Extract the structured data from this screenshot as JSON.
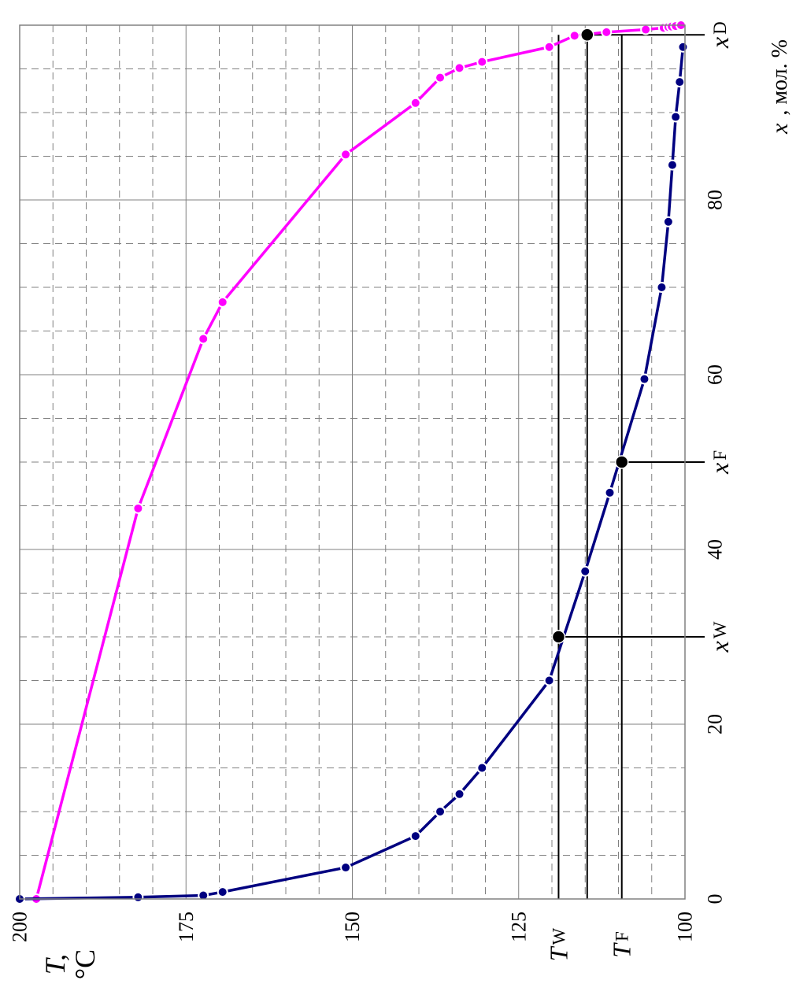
{
  "chart_data": {
    "type": "line",
    "x_axis": {
      "label_var": "x",
      "label_unit": "мол. %",
      "range": [
        0,
        100
      ],
      "ticks": [
        "0",
        "20",
        "40",
        "60",
        "80"
      ],
      "major_step": 20,
      "minor_step": 5
    },
    "y_axis": {
      "label_var": "T,",
      "label_unit": "°C",
      "range": [
        100,
        200
      ],
      "ticks": [
        "100",
        "125",
        "150",
        "175",
        "200"
      ],
      "major_step": 25,
      "minor_step": 5
    },
    "grid": true,
    "series": [
      {
        "color": "#FF00FF",
        "points": [
          [
            0,
            197.5
          ],
          [
            44.7,
            182.2
          ],
          [
            64.1,
            172.4
          ],
          [
            68.3,
            169.5
          ],
          [
            85.2,
            151.0
          ],
          [
            91.1,
            140.5
          ],
          [
            94.0,
            136.8
          ],
          [
            95.1,
            133.9
          ],
          [
            95.8,
            130.5
          ],
          [
            97.5,
            120.4
          ],
          [
            98.8,
            116.6
          ],
          [
            99.2,
            111.8
          ],
          [
            99.5,
            105.9
          ],
          [
            99.7,
            103.2
          ],
          [
            99.8,
            102.5
          ],
          [
            99.85,
            102.0
          ],
          [
            99.9,
            101.4
          ],
          [
            100,
            100.6
          ]
        ]
      },
      {
        "color": "#000080",
        "points": [
          [
            0,
            200.0
          ],
          [
            0.2,
            182.2
          ],
          [
            0.4,
            172.4
          ],
          [
            0.8,
            169.5
          ],
          [
            3.6,
            151.0
          ],
          [
            7.2,
            140.5
          ],
          [
            10.0,
            136.8
          ],
          [
            12.0,
            133.9
          ],
          [
            15.0,
            130.5
          ],
          [
            25.0,
            120.4
          ],
          [
            37.5,
            115.0
          ],
          [
            46.5,
            111.3
          ],
          [
            59.5,
            106.1
          ],
          [
            70.0,
            103.5
          ],
          [
            77.5,
            102.5
          ],
          [
            84.0,
            101.9
          ],
          [
            89.5,
            101.4
          ],
          [
            93.5,
            100.8
          ],
          [
            97.5,
            100.3
          ]
        ]
      }
    ],
    "markers": [
      {
        "x": 30,
        "y": 119.0,
        "color": "#000000"
      },
      {
        "x": 50,
        "y": 109.5,
        "color": "#000000"
      },
      {
        "x": 98.9,
        "y": 114.7,
        "color": "#000000"
      }
    ],
    "annotations": {
      "x_marks": [
        {
          "x": 30,
          "var": "x",
          "sub": "W"
        },
        {
          "x": 50,
          "var": "x",
          "sub": "F"
        },
        {
          "x": 98.9,
          "var": "x",
          "sub": "D"
        }
      ],
      "y_marks": [
        {
          "y": 119.0,
          "var": "T",
          "sub": "W"
        },
        {
          "y": 109.5,
          "var": "T",
          "sub": "F"
        }
      ],
      "guide_x_far": 98.9
    }
  }
}
